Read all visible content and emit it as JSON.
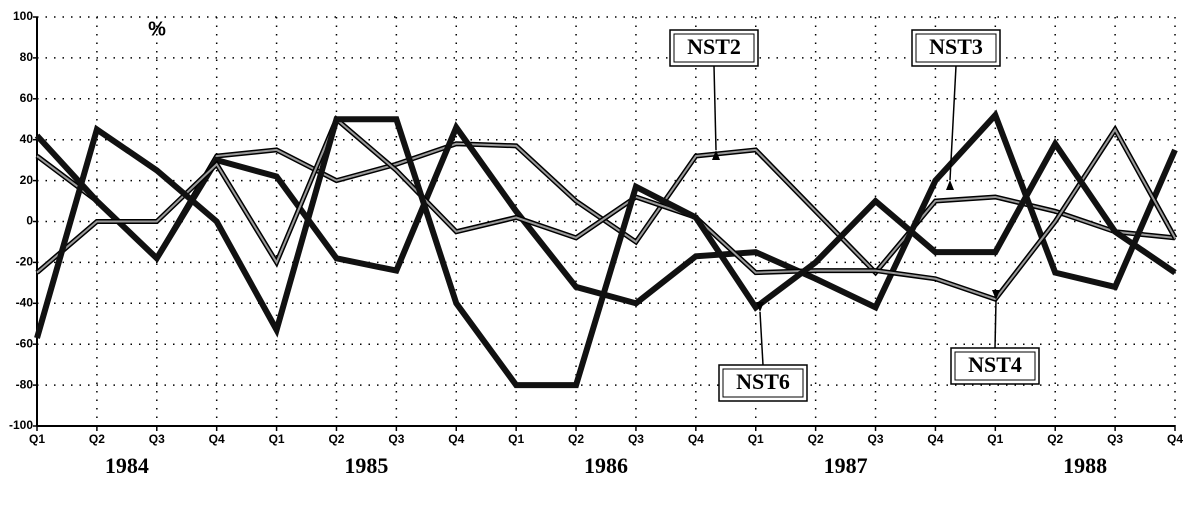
{
  "chart_data": {
    "type": "line",
    "ylabel": "%",
    "categories": [
      "Q1",
      "Q2",
      "Q3",
      "Q4",
      "Q1",
      "Q2",
      "Q3",
      "Q4",
      "Q1",
      "Q2",
      "Q3",
      "Q4",
      "Q1",
      "Q2",
      "Q3",
      "Q4",
      "Q1",
      "Q2",
      "Q3",
      "Q4"
    ],
    "year_labels": [
      "1984",
      "1985",
      "1986",
      "1987",
      "1988"
    ],
    "series": [
      {
        "name": "NST2",
        "color": "#9a9a9a",
        "line_width": 2,
        "outline": true,
        "values": [
          32,
          10,
          -18,
          32,
          35,
          20,
          28,
          38,
          37,
          10,
          -10,
          32,
          35,
          5,
          -25,
          10,
          12,
          5,
          -5,
          -8
        ]
      },
      {
        "name": "NST3",
        "color": "#111111",
        "line_width": 6,
        "outline": false,
        "values": [
          42,
          10,
          -18,
          30,
          22,
          -18,
          -24,
          46,
          5,
          -32,
          -40,
          -17,
          -15,
          -28,
          -42,
          20,
          52,
          -25,
          -32,
          35
        ]
      },
      {
        "name": "NST4",
        "color": "#9a9a9a",
        "line_width": 2,
        "outline": true,
        "values": [
          -25,
          0,
          0,
          28,
          -20,
          50,
          25,
          -5,
          2,
          -8,
          12,
          2,
          -25,
          -24,
          -24,
          -28,
          -38,
          0,
          45,
          -8
        ]
      },
      {
        "name": "NST6",
        "color": "#111111",
        "line_width": 6,
        "outline": false,
        "values": [
          -57,
          45,
          25,
          0,
          -53,
          50,
          50,
          -40,
          -80,
          -80,
          17,
          2,
          -42,
          -20,
          10,
          -15,
          -15,
          38,
          -5,
          -25
        ]
      }
    ],
    "ylim": [
      -100,
      100
    ],
    "yticks": [
      -100,
      -80,
      -60,
      -40,
      -20,
      0,
      20,
      40,
      60,
      80,
      100
    ],
    "grid": true
  }
}
